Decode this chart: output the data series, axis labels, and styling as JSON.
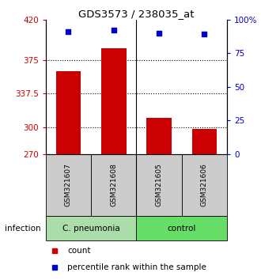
{
  "title": "GDS3573 / 238035_at",
  "samples": [
    "GSM321607",
    "GSM321608",
    "GSM321605",
    "GSM321606"
  ],
  "counts": [
    362,
    388,
    310,
    298
  ],
  "percentiles": [
    91,
    92,
    90,
    89
  ],
  "ylim_left": [
    270,
    420
  ],
  "ylim_right": [
    0,
    100
  ],
  "yticks_left": [
    270,
    300,
    337.5,
    375,
    420
  ],
  "yticks_right": [
    0,
    25,
    50,
    75,
    100
  ],
  "ytick_labels_left": [
    "270",
    "300",
    "337.5",
    "375",
    "420"
  ],
  "ytick_labels_right": [
    "0",
    "25",
    "50",
    "75",
    "100%"
  ],
  "bar_color": "#cc0000",
  "scatter_color": "#0000cc",
  "groups": [
    {
      "label": "C. pneumonia",
      "start": 0,
      "end": 2,
      "color": "#aaddaa"
    },
    {
      "label": "control",
      "start": 2,
      "end": 4,
      "color": "#66dd66"
    }
  ],
  "sample_box_color": "#cccccc",
  "infection_label": "infection",
  "legend_count_label": "count",
  "legend_pct_label": "percentile rank within the sample",
  "dotted_grid_levels": [
    300,
    337.5,
    375
  ],
  "bar_width": 0.55
}
